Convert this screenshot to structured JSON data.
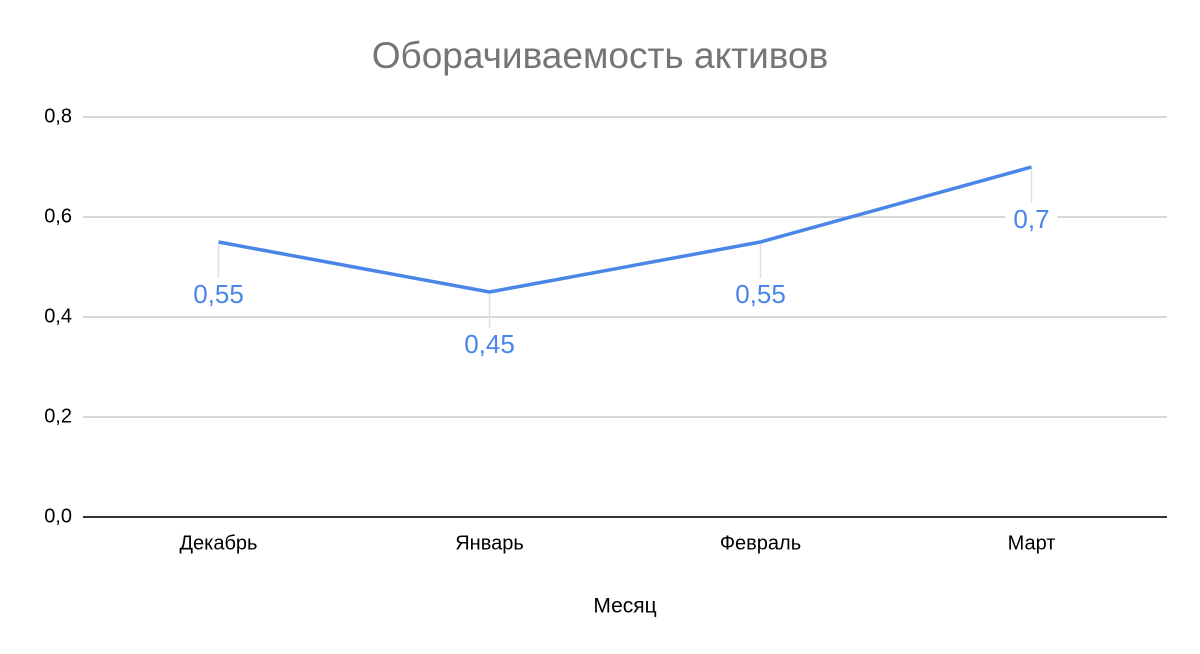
{
  "chart_data": {
    "type": "line",
    "title": "Оборачиваемость активов",
    "x_label": "Месяц",
    "categories": [
      "Декабрь",
      "Январь",
      "Февраль",
      "Март"
    ],
    "series": [
      {
        "name": "Оборачиваемость активов",
        "color": "#4a86e8",
        "values": [
          0.55,
          0.45,
          0.55,
          0.7
        ],
        "value_labels": [
          "0,55",
          "0,45",
          "0,55",
          "0,7"
        ]
      }
    ],
    "ylim": [
      0,
      0.8
    ],
    "yticks": [
      {
        "value": 0,
        "label": "0,0"
      },
      {
        "value": 0.2,
        "label": "0,2"
      },
      {
        "value": 0.4,
        "label": "0,4"
      },
      {
        "value": 0.6,
        "label": "0,6"
      },
      {
        "value": 0.8,
        "label": "0,8"
      }
    ],
    "grid": true
  }
}
